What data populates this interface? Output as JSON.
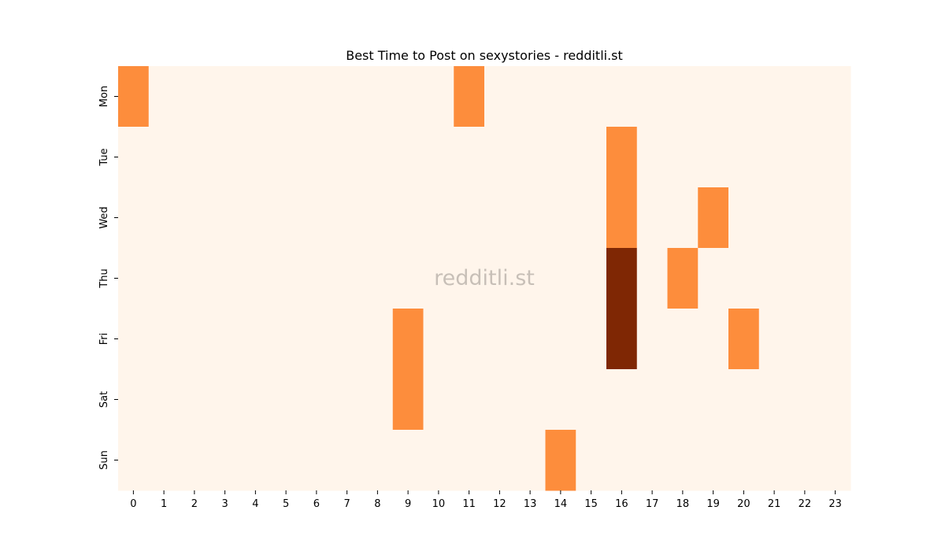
{
  "chart_data": {
    "type": "heatmap",
    "title": "Best Time to Post on sexystories - redditli.st",
    "xlabel": "",
    "ylabel": "",
    "x_categories": [
      "0",
      "1",
      "2",
      "3",
      "4",
      "5",
      "6",
      "7",
      "8",
      "9",
      "10",
      "11",
      "12",
      "13",
      "14",
      "15",
      "16",
      "17",
      "18",
      "19",
      "20",
      "21",
      "22",
      "23"
    ],
    "y_categories": [
      "Mon",
      "Tue",
      "Wed",
      "Thu",
      "Fri",
      "Sat",
      "Sun"
    ],
    "values": [
      [
        1,
        0,
        0,
        0,
        0,
        0,
        0,
        0,
        0,
        0,
        0,
        1,
        0,
        0,
        0,
        0,
        0,
        0,
        0,
        0,
        0,
        0,
        0,
        0
      ],
      [
        0,
        0,
        0,
        0,
        0,
        0,
        0,
        0,
        0,
        0,
        0,
        0,
        0,
        0,
        0,
        0,
        1,
        0,
        0,
        0,
        0,
        0,
        0,
        0
      ],
      [
        0,
        0,
        0,
        0,
        0,
        0,
        0,
        0,
        0,
        0,
        0,
        0,
        0,
        0,
        0,
        0,
        1,
        0,
        0,
        1,
        0,
        0,
        0,
        0
      ],
      [
        0,
        0,
        0,
        0,
        0,
        0,
        0,
        0,
        0,
        0,
        0,
        0,
        0,
        0,
        0,
        0,
        2,
        0,
        1,
        0,
        0,
        0,
        0,
        0
      ],
      [
        0,
        0,
        0,
        0,
        0,
        0,
        0,
        0,
        0,
        1,
        0,
        0,
        0,
        0,
        0,
        0,
        2,
        0,
        0,
        0,
        1,
        0,
        0,
        0
      ],
      [
        0,
        0,
        0,
        0,
        0,
        0,
        0,
        0,
        0,
        1,
        0,
        0,
        0,
        0,
        0,
        0,
        0,
        0,
        0,
        0,
        0,
        0,
        0,
        0
      ],
      [
        0,
        0,
        0,
        0,
        0,
        0,
        0,
        0,
        0,
        0,
        0,
        0,
        0,
        0,
        1,
        0,
        0,
        0,
        0,
        0,
        0,
        0,
        0,
        0
      ]
    ],
    "colormap": {
      "0": "#fff5eb",
      "1": "#fd8d3c",
      "2": "#7f2704"
    },
    "legend": "none",
    "grid": false,
    "watermark": "redditli.st"
  }
}
